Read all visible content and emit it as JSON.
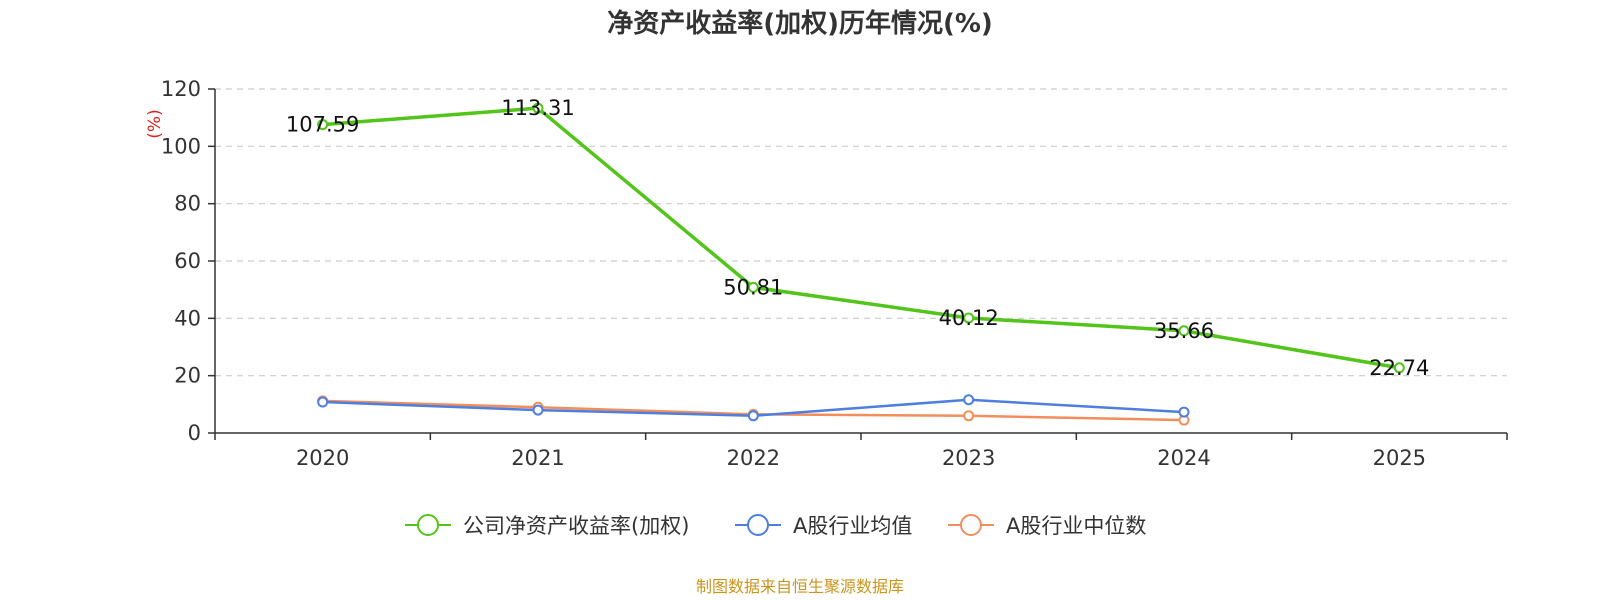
{
  "chart_data": {
    "type": "line",
    "title": "净资产收益率(加权)历年情况(%)",
    "ylabel": "(%)",
    "xlabel": "",
    "categories": [
      "2020",
      "2021",
      "2022",
      "2023",
      "2024",
      "2025"
    ],
    "ylim": [
      0,
      120
    ],
    "yticks": [
      0,
      20,
      40,
      60,
      80,
      100,
      120
    ],
    "grid": true,
    "legend_position": "bottom",
    "series": [
      {
        "name": "公司净资产收益率(加权)",
        "color": "#52c41a",
        "values": [
          107.59,
          113.31,
          50.81,
          40.12,
          35.66,
          22.74
        ],
        "labels": [
          "107.59",
          "113.31",
          "50.81",
          "40.12",
          "35.66",
          "22.74"
        ]
      },
      {
        "name": "A股行业均值",
        "color": "#4e7fde",
        "values": [
          10.8,
          8.0,
          6.0,
          11.6,
          7.3,
          null
        ]
      },
      {
        "name": "A股行业中位数",
        "color": "#f28e5c",
        "values": [
          11.2,
          9.0,
          6.5,
          6.0,
          4.5,
          null
        ]
      }
    ],
    "source": "制图数据来自恒生聚源数据库",
    "source_color": "#c8961e",
    "ylabel_color": "#e02020"
  }
}
